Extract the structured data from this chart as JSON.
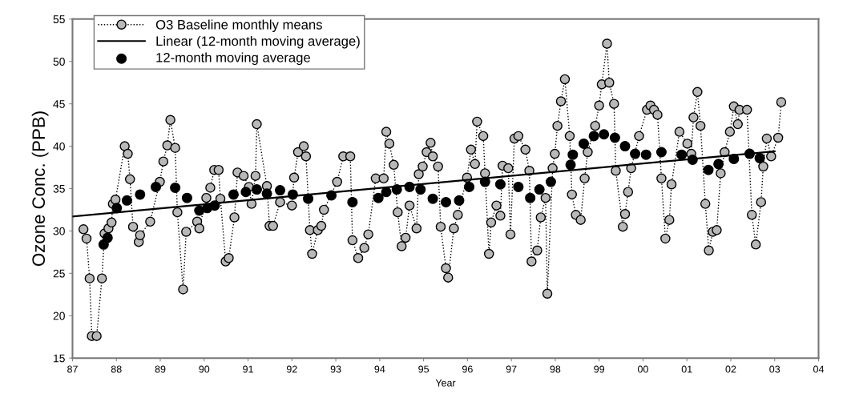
{
  "chart_data": {
    "type": "line",
    "xlabel": "Year",
    "ylabel": "Ozone Conc. (PPB)",
    "xlim": [
      1987,
      2004
    ],
    "ylim": [
      15,
      55
    ],
    "xticks": [
      {
        "value": 1987,
        "label": "87"
      },
      {
        "value": 1988,
        "label": "88"
      },
      {
        "value": 1989,
        "label": "89"
      },
      {
        "value": 1990,
        "label": "90"
      },
      {
        "value": 1991,
        "label": "91"
      },
      {
        "value": 1992,
        "label": "92"
      },
      {
        "value": 1993,
        "label": "93"
      },
      {
        "value": 1994,
        "label": "94"
      },
      {
        "value": 1995,
        "label": "95"
      },
      {
        "value": 1996,
        "label": "96"
      },
      {
        "value": 1997,
        "label": "97"
      },
      {
        "value": 1998,
        "label": "98"
      },
      {
        "value": 1999,
        "label": "99"
      },
      {
        "value": 2000,
        "label": "00"
      },
      {
        "value": 2001,
        "label": "01"
      },
      {
        "value": 2002,
        "label": "02"
      },
      {
        "value": 2003,
        "label": "03"
      },
      {
        "value": 2004,
        "label": "04"
      }
    ],
    "yticks": [
      15,
      20,
      25,
      30,
      35,
      40,
      45,
      50,
      55
    ],
    "grid": false,
    "legend": "top left",
    "series": [
      {
        "name": "O3 Baseline monthly means",
        "marker": "circle",
        "line_style": "dotted",
        "color": "#b8b8b8",
        "x": [
          1987.25,
          1987.32,
          1987.39,
          1987.44,
          1987.55,
          1987.67,
          1987.73,
          1987.82,
          1987.89,
          1987.92,
          1987.98,
          1988.19,
          1988.26,
          1988.31,
          1988.38,
          1988.51,
          1988.54,
          1988.77,
          1988.99,
          1989.07,
          1989.16,
          1989.23,
          1989.34,
          1989.39,
          1989.52,
          1989.59,
          1989.84,
          1989.89,
          1990.05,
          1990.14,
          1990.23,
          1990.33,
          1990.37,
          1990.49,
          1990.56,
          1990.69,
          1990.76,
          1990.9,
          1991.02,
          1991.08,
          1991.17,
          1991.2,
          1991.43,
          1991.49,
          1991.57,
          1991.73,
          1992.0,
          1992.05,
          1992.14,
          1992.27,
          1992.32,
          1992.41,
          1992.46,
          1992.59,
          1992.67,
          1992.73,
          1993.03,
          1993.17,
          1993.33,
          1993.38,
          1993.51,
          1993.65,
          1993.74,
          1993.91,
          1994.09,
          1994.15,
          1994.22,
          1994.32,
          1994.41,
          1994.5,
          1994.59,
          1994.68,
          1994.84,
          1994.89,
          1994.98,
          1995.07,
          1995.16,
          1995.21,
          1995.33,
          1995.39,
          1995.51,
          1995.56,
          1995.69,
          1995.78,
          1995.99,
          1996.08,
          1996.17,
          1996.22,
          1996.36,
          1996.4,
          1996.49,
          1996.54,
          1996.66,
          1996.75,
          1996.8,
          1996.93,
          1996.98,
          1997.07,
          1997.16,
          1997.32,
          1997.41,
          1997.46,
          1997.59,
          1997.67,
          1997.78,
          1997.82,
          1997.94,
          1997.99,
          1998.05,
          1998.13,
          1998.22,
          1998.33,
          1998.38,
          1998.47,
          1998.58,
          1998.67,
          1998.74,
          1998.91,
          1999.0,
          1999.06,
          1999.18,
          1999.23,
          1999.34,
          1999.38,
          1999.54,
          1999.59,
          1999.66,
          1999.73,
          1999.91,
          2000.09,
          2000.17,
          2000.25,
          2000.33,
          2000.42,
          2000.51,
          2000.6,
          2000.65,
          2000.83,
          2001.01,
          2001.1,
          2001.15,
          2001.24,
          2001.31,
          2001.42,
          2001.5,
          2001.59,
          2001.68,
          2001.77,
          2001.86,
          2001.98,
          2002.07,
          2002.16,
          2002.2,
          2002.37,
          2002.48,
          2002.57,
          2002.69,
          2002.74,
          2002.82,
          2002.92,
          2003.08,
          2003.15
        ],
        "values": [
          30.2,
          29.1,
          24.4,
          17.6,
          17.6,
          24.4,
          29.7,
          30.3,
          31.0,
          33.2,
          33.7,
          40.0,
          39.1,
          36.1,
          30.5,
          28.7,
          29.5,
          31.1,
          35.8,
          38.2,
          40.1,
          43.1,
          39.8,
          32.2,
          23.1,
          29.9,
          31.1,
          30.3,
          33.9,
          35.1,
          37.2,
          37.2,
          33.8,
          26.4,
          26.8,
          31.6,
          36.9,
          36.5,
          35.2,
          33.2,
          36.5,
          42.6,
          35.3,
          30.6,
          30.6,
          33.4,
          33.0,
          36.3,
          39.3,
          40.0,
          38.8,
          30.1,
          27.3,
          30.1,
          30.6,
          32.5,
          35.8,
          38.8,
          38.8,
          28.9,
          26.8,
          28.0,
          29.6,
          36.2,
          36.2,
          41.7,
          40.3,
          37.8,
          32.2,
          28.2,
          29.2,
          33.0,
          30.3,
          36.7,
          37.6,
          39.3,
          40.4,
          38.8,
          37.6,
          30.5,
          25.6,
          24.5,
          30.3,
          31.9,
          36.3,
          39.6,
          37.9,
          42.9,
          41.2,
          36.8,
          27.3,
          31.0,
          33.0,
          31.8,
          37.7,
          37.4,
          29.6,
          40.9,
          41.2,
          39.6,
          37.1,
          26.4,
          27.7,
          31.6,
          33.9,
          22.6,
          37.4,
          39.1,
          42.4,
          45.3,
          47.9,
          41.2,
          34.3,
          31.9,
          31.3,
          36.2,
          39.3,
          42.4,
          44.8,
          47.3,
          52.1,
          47.5,
          45.0,
          37.1,
          30.5,
          32.0,
          34.6,
          37.4,
          41.2,
          44.3,
          44.8,
          44.3,
          43.7,
          36.2,
          29.1,
          31.3,
          35.5,
          41.7,
          40.3,
          39.1,
          43.4,
          46.4,
          42.4,
          33.2,
          27.7,
          29.9,
          30.1,
          36.8,
          39.3,
          41.7,
          44.7,
          42.6,
          44.3,
          44.3,
          31.9,
          28.4,
          33.4,
          37.6,
          40.9,
          38.8,
          41.0,
          45.2
        ]
      },
      {
        "name": "Linear (12-month moving average)",
        "marker": "none",
        "line_style": "solid",
        "color": "#000000",
        "x": [
          1987.0,
          2003.0
        ],
        "values": [
          31.7,
          39.4
        ]
      },
      {
        "name": "12-month moving average",
        "type": "scatter",
        "marker": "circle",
        "color": "#000000",
        "x": [
          1987.71,
          1987.8,
          1988.01,
          1988.24,
          1988.54,
          1988.9,
          1989.34,
          1989.61,
          1989.89,
          1990.07,
          1990.24,
          1990.67,
          1990.95,
          1991.2,
          1991.43,
          1991.73,
          1992.02,
          1992.37,
          1992.9,
          1993.38,
          1993.97,
          1994.15,
          1994.39,
          1994.68,
          1994.93,
          1995.21,
          1995.51,
          1995.81,
          1996.04,
          1996.4,
          1996.75,
          1997.16,
          1997.43,
          1997.64,
          1997.9,
          1998.35,
          1998.4,
          1998.65,
          1998.88,
          1999.11,
          1999.36,
          1999.59,
          1999.82,
          2000.07,
          2000.42,
          2000.88,
          2001.13,
          2001.49,
          2001.72,
          2002.07,
          2002.43,
          2002.66
        ],
        "values": [
          28.4,
          29.2,
          32.7,
          33.6,
          34.3,
          35.2,
          35.1,
          33.9,
          32.4,
          32.7,
          33.0,
          34.3,
          34.6,
          34.9,
          34.4,
          34.8,
          34.3,
          33.8,
          34.2,
          33.4,
          33.9,
          34.6,
          34.9,
          35.2,
          34.9,
          33.8,
          33.4,
          33.6,
          35.2,
          35.8,
          35.5,
          35.2,
          33.9,
          34.9,
          35.8,
          37.8,
          39.0,
          40.3,
          41.2,
          41.4,
          41.0,
          40.0,
          39.1,
          39.0,
          39.3,
          39.0,
          38.4,
          37.2,
          37.9,
          38.5,
          39.1,
          38.6
        ]
      }
    ]
  }
}
